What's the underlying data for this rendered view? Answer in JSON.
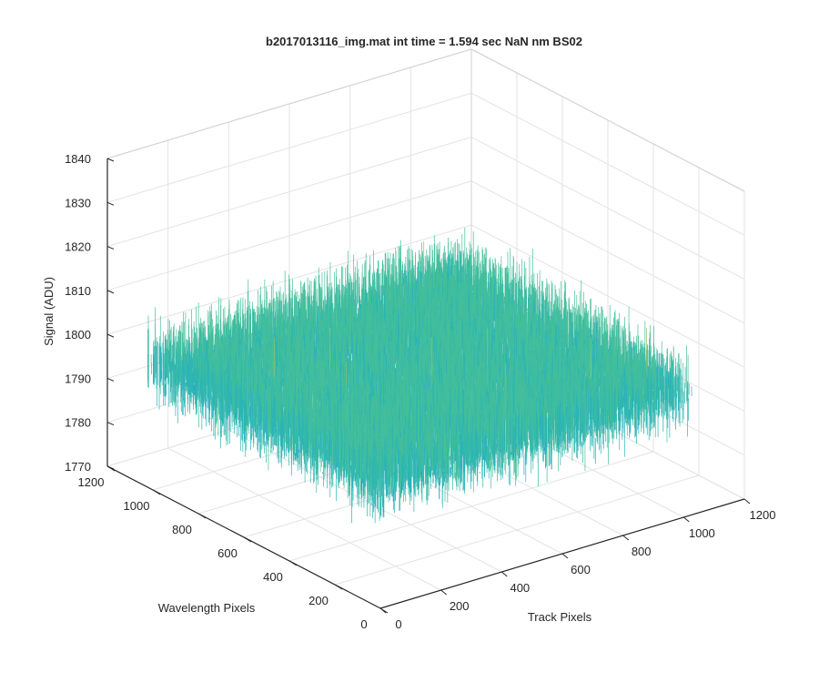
{
  "chart_data": {
    "type": "surface3d",
    "title": "b2017013116_img.mat int time = 1.594 sec  NaN nm BS02",
    "xlabel": "Track Pixels",
    "ylabel": "Wavelength Pixels",
    "zlabel": "Signal (ADU)",
    "xlim": [
      0,
      1200
    ],
    "ylim": [
      0,
      1200
    ],
    "zlim": [
      1770,
      1840
    ],
    "x_ticks": [
      0,
      200,
      400,
      600,
      800,
      1000,
      1200
    ],
    "y_ticks": [
      0,
      200,
      400,
      600,
      800,
      1000,
      1200
    ],
    "z_ticks": [
      1770,
      1780,
      1790,
      1800,
      1810,
      1820,
      1830,
      1840
    ],
    "data_extent": {
      "x": [
        0,
        1024
      ],
      "y": [
        0,
        1024
      ]
    },
    "surface": {
      "mean_signal": 1798,
      "noise_range": [
        1775,
        1825
      ],
      "colormap": [
        "#0072bd",
        "#1f9fd6",
        "#2cb5b5",
        "#45bf9a",
        "#8fc46b",
        "#d8c63a"
      ]
    },
    "grid": true,
    "view": "3d"
  }
}
